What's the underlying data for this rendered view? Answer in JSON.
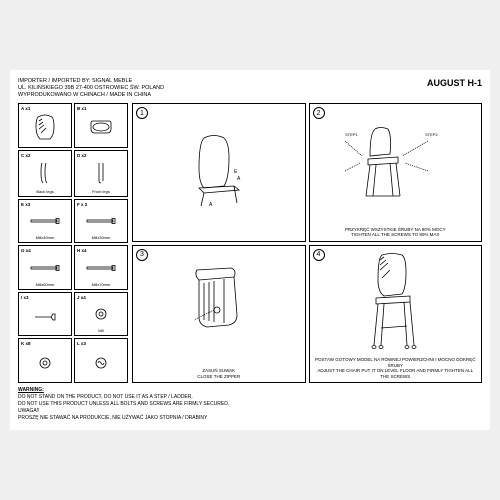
{
  "header": {
    "importer_line1": "IMPORTER / IMPORTED BY: SIGNAL MEBLE",
    "importer_line2": "UL. KILIŃSKIEGO 39B 27-400 OSTROWIEC ŚW. POLAND",
    "importer_line3": "WYPRODUKOWANO W CHINACH / MADE IN CHINA",
    "model": "AUGUST H-1"
  },
  "parts": [
    {
      "code": "A x1",
      "label": "",
      "icon": "backrest"
    },
    {
      "code": "B x1",
      "label": "",
      "icon": "seat"
    },
    {
      "code": "C x2",
      "label": "Back legs",
      "icon": "backleg"
    },
    {
      "code": "D x2",
      "label": "Front legs",
      "icon": "frontleg"
    },
    {
      "code": "E x3",
      "label": "M8x40mm",
      "icon": "bolt"
    },
    {
      "code": "F x 2",
      "label": "M8x30mm",
      "icon": "bolt"
    },
    {
      "code": "G x4",
      "label": "M8x60mm",
      "icon": "bolt"
    },
    {
      "code": "H x4",
      "label": "M8x70mm",
      "icon": "bolt"
    },
    {
      "code": "I x3",
      "label": "",
      "icon": "wrench"
    },
    {
      "code": "J x4",
      "label": "M8",
      "icon": "washer"
    },
    {
      "code": "K x8",
      "label": "",
      "icon": "washer"
    },
    {
      "code": "L x3",
      "label": "",
      "icon": "spring"
    }
  ],
  "steps": [
    {
      "num": "1",
      "caption": "",
      "icon": "step1"
    },
    {
      "num": "2",
      "caption": "PRZYKRĘĆ WSZYSTKIE ŚRUBY NA 80% MOCY\nTIGHTEN ALL THE SCREWS TO 80% MAX",
      "icon": "step2"
    },
    {
      "num": "3",
      "caption": "ZASUŃ SUWAK\nCLOSE THE ZIPPER",
      "icon": "step3"
    },
    {
      "num": "4",
      "caption": "POSTAW GOTOWY MODEL NA RÓWNEJ POWIERZCHNI I MOCNO DOKRĘĆ ŚRUBY\nADJUST THE CHAIR PUT IT ON LEVEL FLOOR AND FIRMLY TIGHTEN ALL THE SCREWS",
      "icon": "step4"
    }
  ],
  "warnings": {
    "title": "WARNING:",
    "line1": "DO NOT STAND ON THE PRODUCT, DO NOT USE IT AS A STEP / LADDER.",
    "line2": "DO NOT USE THIS PRODUCT UNLESS ALL BOLTS AND SCREWS ARE FIRMLY SECURED.",
    "line3": "UWAGA!!",
    "line4": "PROSZĘ NIE STAWAĆ NA PRODUKCIE, NIE UŻYWAĆ JAKO STOPNIA / DRABINY"
  },
  "colors": {
    "stroke": "#000000",
    "bg": "#ffffff"
  }
}
